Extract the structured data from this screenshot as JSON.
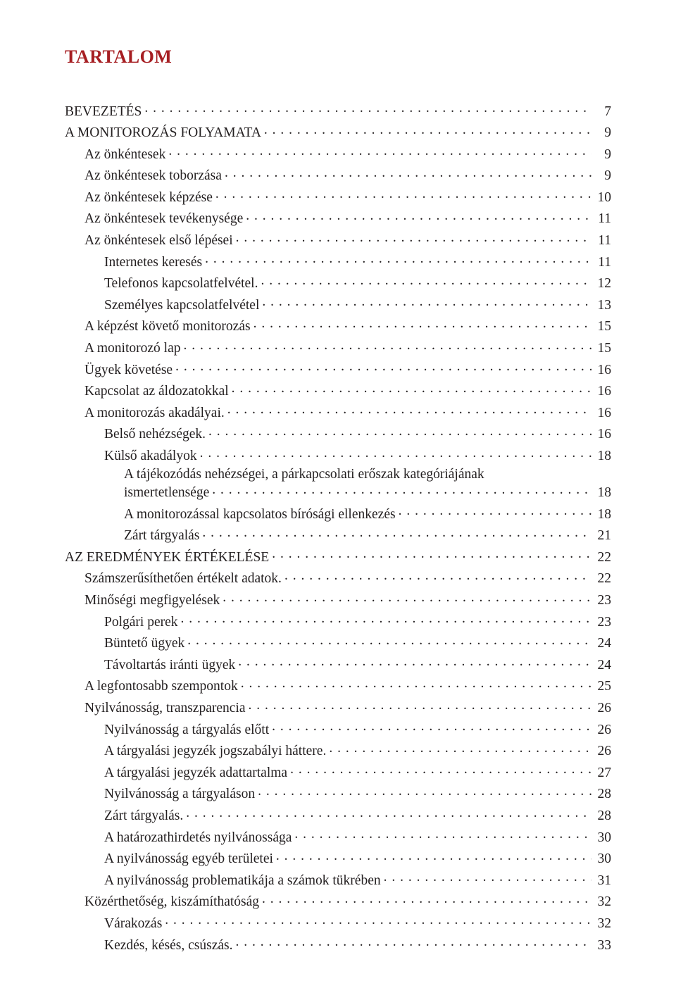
{
  "title": "TARTALOM",
  "title_color": "#a61e22",
  "text_color": "#231f20",
  "background_color": "#ffffff",
  "font_family": "Minion Pro serif",
  "base_fontsize_pt": 15,
  "entries": [
    {
      "label": "BEVEZETÉS",
      "page": "7",
      "level": 0
    },
    {
      "label": "A MONITOROZÁS FOLYAMATA",
      "page": "9",
      "level": 0
    },
    {
      "label": "Az önkéntesek",
      "page": "9",
      "level": 1
    },
    {
      "label": "Az önkéntesek toborzása",
      "page": "9",
      "level": 1
    },
    {
      "label": "Az önkéntesek képzése",
      "page": "10",
      "level": 1
    },
    {
      "label": "Az önkéntesek tevékenysége",
      "page": "11",
      "level": 1
    },
    {
      "label": "Az önkéntesek első lépései",
      "page": "11",
      "level": 1
    },
    {
      "label": "Internetes keresés",
      "page": "11",
      "level": 2
    },
    {
      "label": "Telefonos kapcsolatfelvétel.",
      "page": "12",
      "level": 2
    },
    {
      "label": "Személyes kapcsolatfelvétel",
      "page": "13",
      "level": 2
    },
    {
      "label": "A képzést követő monitorozás",
      "page": "15",
      "level": 1
    },
    {
      "label": "A monitorozó lap",
      "page": "15",
      "level": 1
    },
    {
      "label": "Ügyek követése",
      "page": "16",
      "level": 1
    },
    {
      "label": "Kapcsolat az áldozatokkal",
      "page": "16",
      "level": 1
    },
    {
      "label": "A monitorozás akadályai.",
      "page": "16",
      "level": 1
    },
    {
      "label": "Belső nehézségek.",
      "page": "16",
      "level": 2
    },
    {
      "label": "Külső akadályok",
      "page": "18",
      "level": 2
    },
    {
      "label": "A tájékozódás nehézségei, a párkapcsolati erőszak kategóriájának",
      "wrap_next": "ismertetlensége",
      "page": "18",
      "level": 3
    },
    {
      "label": "A monitorozással kapcsolatos bírósági ellenkezés",
      "page": "18",
      "level": 3
    },
    {
      "label": "Zárt tárgyalás",
      "page": "21",
      "level": 3
    },
    {
      "label": "AZ EREDMÉNYEK ÉRTÉKELÉSE",
      "page": "22",
      "level": 0
    },
    {
      "label": "Számszerűsíthetően értékelt adatok.",
      "page": "22",
      "level": 1
    },
    {
      "label": "Minőségi megfigyelések",
      "page": "23",
      "level": 1
    },
    {
      "label": "Polgári perek",
      "page": "23",
      "level": 2
    },
    {
      "label": "Büntető ügyek",
      "page": "24",
      "level": 2
    },
    {
      "label": "Távoltartás iránti ügyek",
      "page": "24",
      "level": 2
    },
    {
      "label": "A legfontosabb szempontok",
      "page": "25",
      "level": 1
    },
    {
      "label": "Nyilvánosság, transzparencia",
      "page": "26",
      "level": 1
    },
    {
      "label": "Nyilvánosság a tárgyalás előtt",
      "page": "26",
      "level": 2
    },
    {
      "label": "A tárgyalási jegyzék jogszabályi háttere.",
      "page": "26",
      "level": 2
    },
    {
      "label": "A tárgyalási jegyzék adattartalma",
      "page": "27",
      "level": 2
    },
    {
      "label": "Nyilvánosság a tárgyaláson",
      "page": "28",
      "level": 2
    },
    {
      "label": "Zárt tárgyalás.",
      "page": "28",
      "level": 2
    },
    {
      "label": "A határozathirdetés nyilvánossága",
      "page": "30",
      "level": 2
    },
    {
      "label": "A nyilvánosság egyéb területei",
      "page": "30",
      "level": 2
    },
    {
      "label": "A nyilvánosság problematikája a számok tükrében",
      "page": "31",
      "level": 2
    },
    {
      "label": "Közérthetőség, kiszámíthatóság",
      "page": "32",
      "level": 1
    },
    {
      "label": "Várakozás",
      "page": "32",
      "level": 2
    },
    {
      "label": "Kezdés, késés, csúszás.",
      "page": "33",
      "level": 2
    }
  ]
}
